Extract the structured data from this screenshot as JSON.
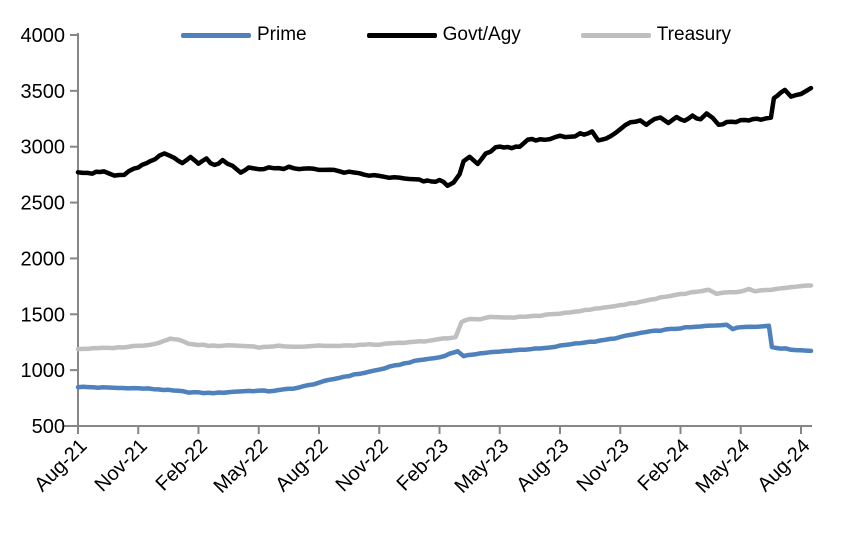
{
  "chart_data": {
    "type": "line",
    "title": "",
    "xlabel": "",
    "ylabel": "",
    "grid": false,
    "legend_position": "top",
    "x_axis": {
      "unit": "months since Aug-2021 (fractional = intra-month date)",
      "range": [
        0,
        36.5
      ],
      "tick_interval_months": 3,
      "tick_labels": [
        "Aug-21",
        "Nov-21",
        "Feb-22",
        "May-22",
        "Aug-22",
        "Nov-22",
        "Feb-23",
        "May-23",
        "Aug-23",
        "Nov-23",
        "Feb-24",
        "May-24",
        "Aug-24"
      ]
    },
    "y_axis": {
      "range": [
        500,
        4000
      ],
      "tick_step": 500,
      "tick_labels": [
        "500",
        "1000",
        "1500",
        "2000",
        "2500",
        "3000",
        "3500",
        "4000"
      ]
    },
    "series": [
      {
        "name": "Prime",
        "color": "#4F81BD",
        "wiggle": 4,
        "points": [
          [
            0,
            850
          ],
          [
            0.5,
            848
          ],
          [
            1,
            845
          ],
          [
            1.5,
            843
          ],
          [
            2,
            840
          ],
          [
            2.5,
            840
          ],
          [
            3,
            837
          ],
          [
            3.5,
            834
          ],
          [
            4,
            828
          ],
          [
            4.5,
            820
          ],
          [
            5,
            812
          ],
          [
            5.5,
            803
          ],
          [
            6,
            798
          ],
          [
            6.5,
            795
          ],
          [
            7,
            797
          ],
          [
            7.5,
            803
          ],
          [
            8,
            810
          ],
          [
            8.5,
            814
          ],
          [
            9,
            816
          ],
          [
            9.5,
            812
          ],
          [
            10,
            820
          ],
          [
            10.5,
            832
          ],
          [
            11,
            845
          ],
          [
            11.5,
            865
          ],
          [
            12,
            888
          ],
          [
            12.5,
            910
          ],
          [
            13,
            932
          ],
          [
            13.5,
            950
          ],
          [
            14,
            968
          ],
          [
            14.5,
            985
          ],
          [
            15,
            1005
          ],
          [
            15.5,
            1028
          ],
          [
            16,
            1050
          ],
          [
            16.5,
            1070
          ],
          [
            17,
            1090
          ],
          [
            17.5,
            1102
          ],
          [
            18,
            1115
          ],
          [
            18.5,
            1145
          ],
          [
            18.9,
            1172
          ],
          [
            19.2,
            1122
          ],
          [
            19.6,
            1140
          ],
          [
            20,
            1150
          ],
          [
            20.5,
            1158
          ],
          [
            21,
            1165
          ],
          [
            21.5,
            1175
          ],
          [
            22,
            1182
          ],
          [
            22.5,
            1188
          ],
          [
            23,
            1193
          ],
          [
            23.5,
            1200
          ],
          [
            24,
            1218
          ],
          [
            24.5,
            1232
          ],
          [
            25,
            1245
          ],
          [
            25.5,
            1252
          ],
          [
            26,
            1262
          ],
          [
            26.5,
            1278
          ],
          [
            27,
            1295
          ],
          [
            27.5,
            1315
          ],
          [
            28,
            1332
          ],
          [
            28.5,
            1345
          ],
          [
            29,
            1356
          ],
          [
            29.5,
            1366
          ],
          [
            30,
            1376
          ],
          [
            30.5,
            1384
          ],
          [
            31,
            1390
          ],
          [
            31.5,
            1398
          ],
          [
            32,
            1405
          ],
          [
            32.3,
            1410
          ],
          [
            32.6,
            1368
          ],
          [
            33,
            1385
          ],
          [
            33.5,
            1392
          ],
          [
            34,
            1390
          ],
          [
            34.4,
            1398
          ],
          [
            34.55,
            1208
          ],
          [
            35,
            1196
          ],
          [
            35.5,
            1186
          ],
          [
            36,
            1178
          ],
          [
            36.5,
            1172
          ]
        ]
      },
      {
        "name": "Govt/Agy",
        "color": "#000000",
        "wiggle": 10,
        "points": [
          [
            0,
            2780
          ],
          [
            0.7,
            2762
          ],
          [
            1.3,
            2778
          ],
          [
            1.8,
            2740
          ],
          [
            2.3,
            2750
          ],
          [
            3,
            2820
          ],
          [
            3.6,
            2862
          ],
          [
            4.3,
            2940
          ],
          [
            4.8,
            2900
          ],
          [
            5.2,
            2862
          ],
          [
            5.6,
            2900
          ],
          [
            6,
            2855
          ],
          [
            6.4,
            2890
          ],
          [
            6.8,
            2835
          ],
          [
            7.2,
            2882
          ],
          [
            7.7,
            2825
          ],
          [
            8.1,
            2762
          ],
          [
            8.5,
            2815
          ],
          [
            9,
            2800
          ],
          [
            9.5,
            2815
          ],
          [
            10,
            2800
          ],
          [
            10.5,
            2812
          ],
          [
            11,
            2795
          ],
          [
            11.5,
            2808
          ],
          [
            12,
            2800
          ],
          [
            12.5,
            2790
          ],
          [
            13,
            2778
          ],
          [
            13.5,
            2768
          ],
          [
            14,
            2755
          ],
          [
            14.5,
            2745
          ],
          [
            15,
            2735
          ],
          [
            15.5,
            2726
          ],
          [
            16,
            2718
          ],
          [
            16.5,
            2708
          ],
          [
            17,
            2698
          ],
          [
            17.6,
            2685
          ],
          [
            18,
            2700
          ],
          [
            18.4,
            2655
          ],
          [
            18.7,
            2672
          ],
          [
            19,
            2760
          ],
          [
            19.2,
            2880
          ],
          [
            19.5,
            2900
          ],
          [
            19.9,
            2845
          ],
          [
            20.3,
            2930
          ],
          [
            20.8,
            2990
          ],
          [
            21.2,
            3000
          ],
          [
            21.6,
            2988
          ],
          [
            22,
            3010
          ],
          [
            22.4,
            3055
          ],
          [
            23,
            3070
          ],
          [
            23.5,
            3060
          ],
          [
            24,
            3090
          ],
          [
            24.5,
            3080
          ],
          [
            25,
            3112
          ],
          [
            25.6,
            3130
          ],
          [
            25.9,
            3060
          ],
          [
            26.3,
            3075
          ],
          [
            27,
            3160
          ],
          [
            27.5,
            3215
          ],
          [
            28,
            3230
          ],
          [
            28.3,
            3200
          ],
          [
            28.7,
            3245
          ],
          [
            29,
            3260
          ],
          [
            29.4,
            3220
          ],
          [
            29.8,
            3268
          ],
          [
            30.2,
            3240
          ],
          [
            30.6,
            3275
          ],
          [
            31,
            3245
          ],
          [
            31.3,
            3300
          ],
          [
            31.6,
            3265
          ],
          [
            31.9,
            3190
          ],
          [
            32.3,
            3220
          ],
          [
            33,
            3235
          ],
          [
            34,
            3248
          ],
          [
            34.5,
            3258
          ],
          [
            34.65,
            3440
          ],
          [
            35,
            3480
          ],
          [
            35.2,
            3500
          ],
          [
            35.5,
            3450
          ],
          [
            36,
            3468
          ],
          [
            36.3,
            3502
          ],
          [
            36.5,
            3525
          ]
        ]
      },
      {
        "name": "Treasury",
        "color": "#BFBFBF",
        "wiggle": 4,
        "points": [
          [
            0,
            1190
          ],
          [
            0.5,
            1192
          ],
          [
            1,
            1196
          ],
          [
            1.5,
            1198
          ],
          [
            2,
            1202
          ],
          [
            2.5,
            1210
          ],
          [
            3,
            1218
          ],
          [
            3.5,
            1228
          ],
          [
            4,
            1242
          ],
          [
            4.6,
            1286
          ],
          [
            5,
            1272
          ],
          [
            5.5,
            1238
          ],
          [
            6,
            1228
          ],
          [
            6.5,
            1220
          ],
          [
            7,
            1216
          ],
          [
            7.5,
            1220
          ],
          [
            8,
            1222
          ],
          [
            8.5,
            1212
          ],
          [
            9,
            1204
          ],
          [
            9.5,
            1210
          ],
          [
            10,
            1218
          ],
          [
            10.5,
            1214
          ],
          [
            11,
            1210
          ],
          [
            11.5,
            1215
          ],
          [
            12,
            1220
          ],
          [
            12.5,
            1217
          ],
          [
            13,
            1215
          ],
          [
            13.5,
            1220
          ],
          [
            14,
            1226
          ],
          [
            14.5,
            1228
          ],
          [
            15,
            1230
          ],
          [
            15.5,
            1236
          ],
          [
            16,
            1242
          ],
          [
            16.5,
            1248
          ],
          [
            17,
            1256
          ],
          [
            17.5,
            1265
          ],
          [
            18,
            1276
          ],
          [
            18.8,
            1294
          ],
          [
            19.1,
            1432
          ],
          [
            19.5,
            1462
          ],
          [
            20,
            1452
          ],
          [
            20.5,
            1478
          ],
          [
            21,
            1470
          ],
          [
            21.5,
            1472
          ],
          [
            22,
            1476
          ],
          [
            22.5,
            1482
          ],
          [
            23,
            1488
          ],
          [
            23.5,
            1496
          ],
          [
            24,
            1508
          ],
          [
            24.5,
            1520
          ],
          [
            25,
            1530
          ],
          [
            25.5,
            1542
          ],
          [
            26,
            1555
          ],
          [
            26.5,
            1568
          ],
          [
            27,
            1582
          ],
          [
            27.5,
            1596
          ],
          [
            28,
            1612
          ],
          [
            28.5,
            1630
          ],
          [
            29,
            1650
          ],
          [
            29.5,
            1665
          ],
          [
            30,
            1680
          ],
          [
            30.5,
            1693
          ],
          [
            31,
            1705
          ],
          [
            31.4,
            1718
          ],
          [
            31.8,
            1682
          ],
          [
            32.2,
            1692
          ],
          [
            32.6,
            1698
          ],
          [
            33,
            1702
          ],
          [
            33.4,
            1724
          ],
          [
            33.7,
            1702
          ],
          [
            34,
            1712
          ],
          [
            34.5,
            1720
          ],
          [
            35,
            1730
          ],
          [
            35.5,
            1740
          ],
          [
            36,
            1750
          ],
          [
            36.5,
            1758
          ]
        ]
      }
    ],
    "style": {
      "axis_color": "#868686",
      "text_color": "#000000",
      "background": "#FFFFFF",
      "line_width": 4.5
    }
  }
}
